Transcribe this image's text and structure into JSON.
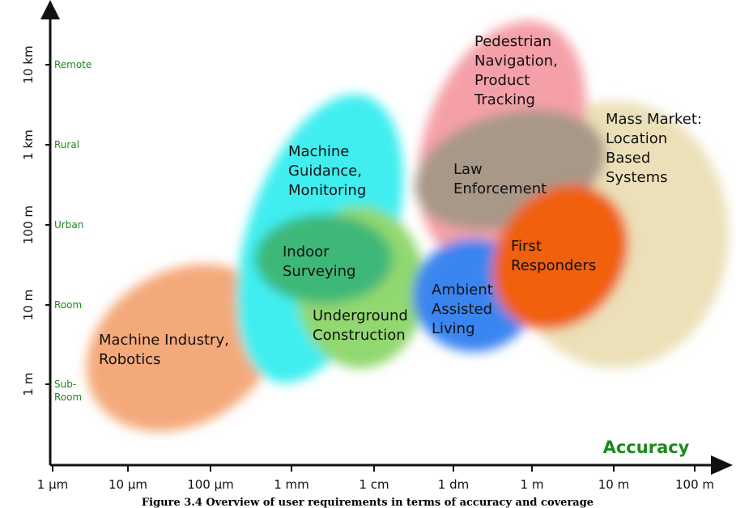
{
  "axes": {
    "x_title": "Accuracy",
    "x_ticks": [
      "1 µm",
      "10 µm",
      "100 µm",
      "1 mm",
      "1 cm",
      "1 dm",
      "1 m",
      "10 m",
      "100 m"
    ],
    "y_ticks": [
      "10 km",
      "1 km",
      "100 m",
      "10 m",
      "1 m"
    ],
    "y_labels": [
      [
        "Remote"
      ],
      [
        "Rural"
      ],
      [
        "Urban"
      ],
      [
        "Room"
      ],
      [
        "Sub-",
        "Room"
      ]
    ]
  },
  "regions": [
    {
      "label": [
        "Machine Industry,",
        "Robotics"
      ]
    },
    {
      "label": [
        "Machine",
        "Guidance,",
        "Monitoring"
      ]
    },
    {
      "label": [
        "Indoor",
        "Surveying"
      ]
    },
    {
      "label": [
        "Underground",
        "Construction"
      ]
    },
    {
      "label": [
        "Pedestrian",
        "Navigation,",
        "Product",
        "Tracking"
      ]
    },
    {
      "label": [
        "Mass Market:",
        "Location",
        "Based",
        "Systems"
      ]
    },
    {
      "label": [
        "Law",
        "Enforcement"
      ]
    },
    {
      "label": [
        "Ambient",
        "Assisted",
        "Living"
      ]
    },
    {
      "label": [
        "First",
        "Responders"
      ]
    }
  ],
  "caption": "Figure 3.4 Overview of user requirements in terms of accuracy and coverage"
}
